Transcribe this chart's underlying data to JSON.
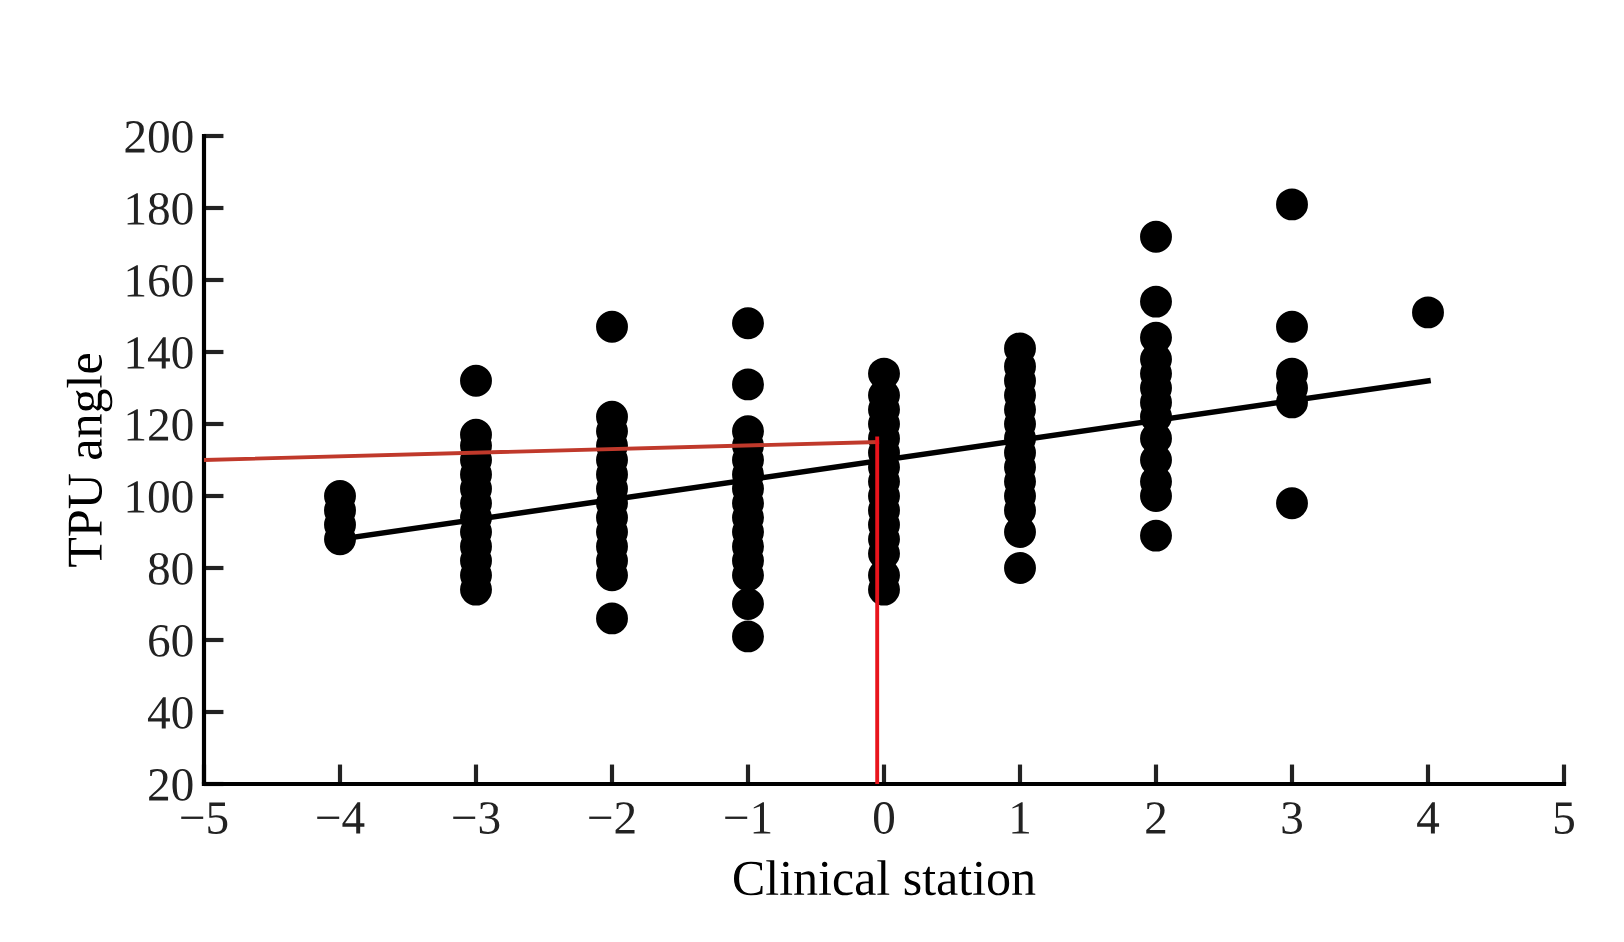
{
  "chart_data": {
    "type": "scatter",
    "xlabel": "Clinical station",
    "ylabel": "TPU angle",
    "xlim": [
      -5,
      5
    ],
    "xticks": [
      {
        "value": -5,
        "label": "−5"
      },
      {
        "value": -4,
        "label": "−4"
      },
      {
        "value": -3,
        "label": "−3"
      },
      {
        "value": -2,
        "label": "−2"
      },
      {
        "value": -1,
        "label": "−1"
      },
      0,
      1,
      2,
      3,
      4,
      5
    ],
    "ylim": [
      20,
      200
    ],
    "yticks": [
      20,
      40,
      60,
      80,
      100,
      120,
      140,
      160,
      180,
      200
    ],
    "grid": false,
    "legend": false,
    "marker": "circle",
    "series": [
      {
        "color": "#000000",
        "x": [
          -4,
          -4,
          -4,
          -4,
          -3,
          -3,
          -3,
          -3,
          -3,
          -3,
          -3,
          -3,
          -3,
          -3,
          -3,
          -3,
          -3,
          -2,
          -2,
          -2,
          -2,
          -2,
          -2,
          -2,
          -2,
          -2,
          -2,
          -2,
          -2,
          -2,
          -2,
          -1,
          -1,
          -1,
          -1,
          -1,
          -1,
          -1,
          -1,
          -1,
          -1,
          -1,
          -1,
          -1,
          -1,
          -1,
          0,
          0,
          0,
          0,
          0,
          0,
          0,
          0,
          0,
          0,
          0,
          0,
          0,
          0,
          0,
          1,
          1,
          1,
          1,
          1,
          1,
          1,
          1,
          1,
          1,
          1,
          1,
          1,
          1,
          2,
          2,
          2,
          2,
          2,
          2,
          2,
          2,
          2,
          2,
          2,
          2,
          2,
          3,
          3,
          3,
          3,
          3,
          3,
          4
        ],
        "values": [
          88,
          92,
          96,
          100,
          74,
          78,
          82,
          86,
          90,
          94,
          98,
          102,
          106,
          110,
          114,
          117,
          132,
          66,
          78,
          82,
          86,
          90,
          94,
          98,
          102,
          106,
          110,
          114,
          118,
          122,
          147,
          61,
          70,
          78,
          82,
          86,
          90,
          94,
          98,
          102,
          106,
          110,
          114,
          118,
          131,
          148,
          74,
          78,
          84,
          88,
          92,
          96,
          100,
          104,
          108,
          112,
          116,
          120,
          124,
          128,
          134,
          80,
          90,
          96,
          100,
          104,
          108,
          112,
          116,
          120,
          124,
          128,
          132,
          136,
          141,
          89,
          100,
          104,
          110,
          116,
          122,
          126,
          130,
          134,
          138,
          144,
          154,
          172,
          98,
          126,
          130,
          134,
          147,
          181,
          151
        ]
      },
      {
        "type": "line",
        "color": "#000000",
        "x": [
          -4,
          4
        ],
        "values": [
          88,
          132
        ],
        "marker": "none",
        "line_style": "solid"
      },
      {
        "type": "line",
        "color": "#c0392b",
        "x": [
          -5,
          -0.05
        ],
        "values": [
          110,
          115
        ],
        "marker": "none",
        "line_style": "solid"
      },
      {
        "type": "line",
        "color": "#e8141c",
        "x": [
          -0.05,
          -0.05
        ],
        "values": [
          20,
          116
        ],
        "marker": "none",
        "line_style": "solid"
      }
    ]
  }
}
